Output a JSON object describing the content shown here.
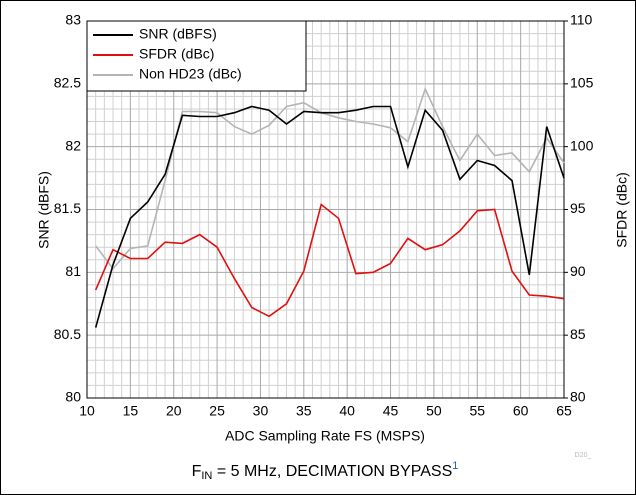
{
  "chart_data": {
    "type": "line",
    "x": [
      11,
      13,
      15,
      17,
      19,
      21,
      23,
      25,
      27,
      29,
      31,
      33,
      35,
      37,
      39,
      41,
      43,
      45,
      47,
      49,
      51,
      53,
      55,
      57,
      59,
      61,
      63,
      65
    ],
    "series": [
      {
        "name": "SNR (dBFS)",
        "color": "#000000",
        "axis": "y",
        "values": [
          80.56,
          81.06,
          81.43,
          81.56,
          81.78,
          82.25,
          82.24,
          82.24,
          82.27,
          82.32,
          82.29,
          82.18,
          82.28,
          82.27,
          82.27,
          82.29,
          82.32,
          82.32,
          81.84,
          82.29,
          82.13,
          81.74,
          81.89,
          81.85,
          81.73,
          80.98,
          82.16,
          81.75
        ]
      },
      {
        "name": "SFDR (dBc)",
        "color": "#e01010",
        "axis": "y2",
        "values": [
          88.6,
          91.8,
          91.1,
          91.1,
          92.4,
          92.3,
          93.0,
          92.0,
          89.5,
          87.2,
          86.5,
          87.5,
          90.1,
          95.4,
          94.3,
          89.9,
          90.0,
          90.7,
          92.7,
          91.8,
          92.2,
          93.3,
          94.9,
          95.0,
          90.1,
          88.2,
          88.1,
          87.9
        ]
      },
      {
        "name": "Non HD23 (dBc)",
        "color": "#b4b4b4",
        "axis": "y2",
        "values": [
          92.1,
          90.3,
          91.9,
          92.1,
          97.3,
          102.8,
          102.8,
          102.7,
          101.6,
          101.0,
          101.7,
          103.2,
          103.5,
          102.7,
          102.3,
          102.0,
          101.8,
          101.5,
          100.4,
          104.6,
          101.6,
          98.9,
          101.0,
          99.3,
          99.5,
          98.0,
          100.7,
          98.7
        ]
      }
    ],
    "xlabel": "ADC Sampling Rate FS (MSPS)",
    "ylabel": "SNR (dBFS)",
    "y2label": "SFDR (dBc)",
    "xlim": [
      10,
      65
    ],
    "xticks": [
      10,
      15,
      20,
      25,
      30,
      35,
      40,
      45,
      50,
      55,
      60,
      65
    ],
    "ylim": [
      80,
      83
    ],
    "yticks": [
      80,
      80.5,
      81,
      81.5,
      82,
      82.5,
      83
    ],
    "y2lim": [
      80,
      110
    ],
    "y2ticks": [
      80,
      85,
      90,
      95,
      100,
      105,
      110
    ],
    "grid": true,
    "minor_grid": true,
    "legend": "upper left",
    "caption": {
      "main": "F",
      "sub": "IN",
      "rest": " = 5 MHz, DECIMATION BYPASS",
      "sup": "1"
    },
    "figure_id": "D20_"
  }
}
